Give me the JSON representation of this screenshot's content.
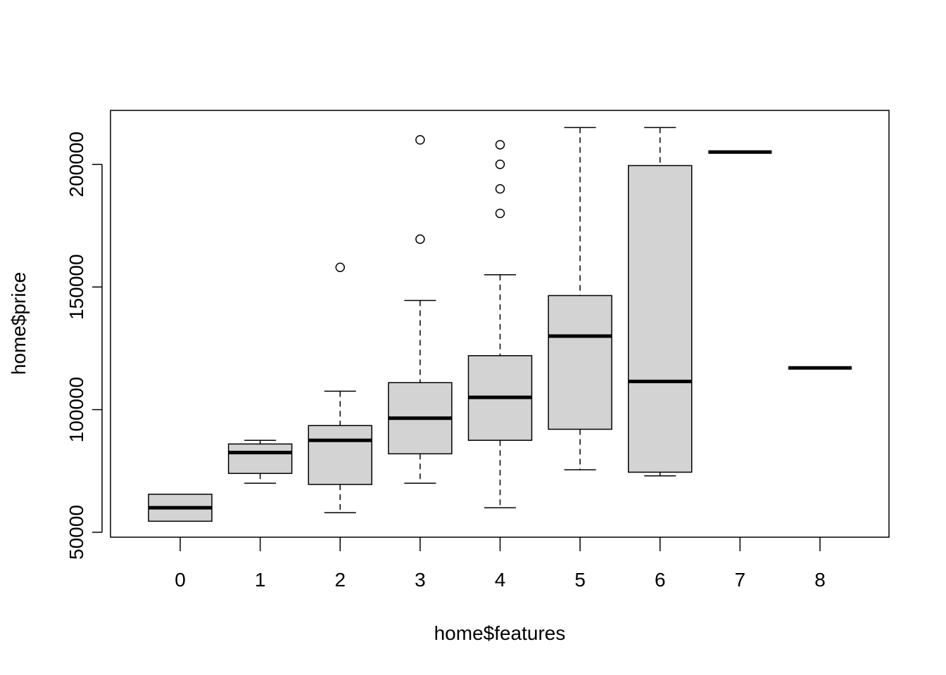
{
  "chart_data": {
    "type": "boxplot",
    "xlabel": "home$features",
    "ylabel": "home$price",
    "ylim": [
      48000,
      222000
    ],
    "yticks": [
      50000,
      100000,
      150000,
      200000
    ],
    "categories": [
      "0",
      "1",
      "2",
      "3",
      "4",
      "5",
      "6",
      "7",
      "8"
    ],
    "boxes": [
      {
        "category": "0",
        "whisker_low": 54500,
        "q1": 54500,
        "median": 60000,
        "q3": 65500,
        "whisker_high": 65500,
        "outliers": []
      },
      {
        "category": "1",
        "whisker_low": 70000,
        "q1": 74000,
        "median": 82500,
        "q3": 86000,
        "whisker_high": 87500,
        "outliers": []
      },
      {
        "category": "2",
        "whisker_low": 58000,
        "q1": 69500,
        "median": 87500,
        "q3": 93500,
        "whisker_high": 107500,
        "outliers": [
          158000
        ]
      },
      {
        "category": "3",
        "whisker_low": 70000,
        "q1": 82000,
        "median": 96500,
        "q3": 111000,
        "whisker_high": 144500,
        "outliers": [
          169500,
          210000
        ]
      },
      {
        "category": "4",
        "whisker_low": 60000,
        "q1": 87500,
        "median": 105000,
        "q3": 122000,
        "whisker_high": 155000,
        "outliers": [
          180000,
          190000,
          200000,
          208000
        ]
      },
      {
        "category": "5",
        "whisker_low": 75500,
        "q1": 92000,
        "median": 130000,
        "q3": 146500,
        "whisker_high": 215000,
        "outliers": []
      },
      {
        "category": "6",
        "whisker_low": 73000,
        "q1": 74500,
        "median": 111500,
        "q3": 199500,
        "whisker_high": 215000,
        "outliers": []
      },
      {
        "category": "7",
        "whisker_low": 205000,
        "q1": 205000,
        "median": 205000,
        "q3": 205000,
        "whisker_high": 205000,
        "outliers": []
      },
      {
        "category": "8",
        "whisker_low": 117000,
        "q1": 117000,
        "median": 117000,
        "q3": 117000,
        "whisker_high": 117000,
        "outliers": []
      }
    ],
    "box_fill": "#d3d3d3",
    "line_color": "#000000",
    "grid": false
  }
}
